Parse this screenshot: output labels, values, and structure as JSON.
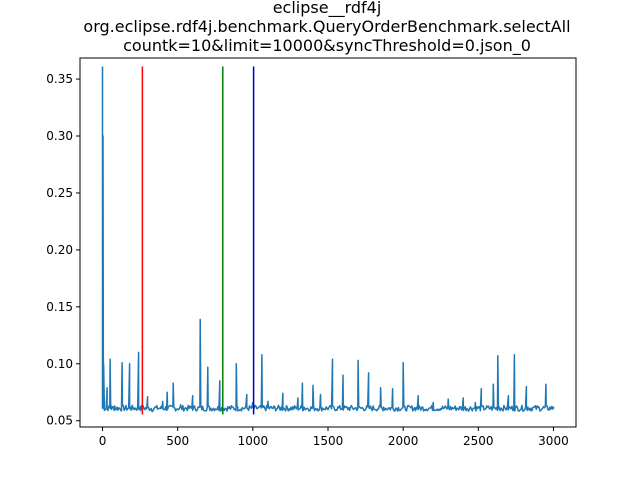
{
  "chart_data": {
    "type": "line",
    "title_lines": [
      "eclipse__rdf4j",
      "org.eclipse.rdf4j.benchmark.QueryOrderBenchmark.selectAll",
      "countk=10&limit=10000&syncThreshold=0.json_0"
    ],
    "xlabel": "",
    "ylabel": "",
    "xlim": [
      -150,
      3150
    ],
    "ylim": [
      0.0445,
      0.3685
    ],
    "x_ticks": [
      0,
      500,
      1000,
      1500,
      2000,
      2500,
      3000
    ],
    "y_ticks": [
      0.05,
      0.1,
      0.15,
      0.2,
      0.25,
      0.3,
      0.35
    ],
    "y_tick_labels": [
      "0.05",
      "0.10",
      "0.15",
      "0.20",
      "0.25",
      "0.30",
      "0.35"
    ],
    "grid": false,
    "legend": "none",
    "series": [
      {
        "color": "#1f77b4",
        "baseline": 0.061,
        "x_end": 3000,
        "points": [
          [
            0,
            0.361
          ],
          [
            3,
            0.3
          ],
          [
            7,
            0.1
          ],
          [
            12,
            0.066
          ],
          [
            30,
            0.079
          ],
          [
            45,
            0.062
          ],
          [
            50,
            0.104
          ],
          [
            55,
            0.064
          ],
          [
            80,
            0.063
          ],
          [
            100,
            0.061
          ],
          [
            130,
            0.101
          ],
          [
            140,
            0.062
          ],
          [
            180,
            0.1
          ],
          [
            190,
            0.062
          ],
          [
            240,
            0.11
          ],
          [
            250,
            0.062
          ],
          [
            300,
            0.071
          ],
          [
            330,
            0.058
          ],
          [
            400,
            0.067
          ],
          [
            430,
            0.075
          ],
          [
            470,
            0.083
          ],
          [
            520,
            0.064
          ],
          [
            600,
            0.072
          ],
          [
            650,
            0.139
          ],
          [
            660,
            0.062
          ],
          [
            700,
            0.097
          ],
          [
            710,
            0.062
          ],
          [
            780,
            0.085
          ],
          [
            800,
            0.061
          ],
          [
            890,
            0.1
          ],
          [
            900,
            0.062
          ],
          [
            960,
            0.073
          ],
          [
            1000,
            0.066
          ],
          [
            1060,
            0.108
          ],
          [
            1070,
            0.063
          ],
          [
            1100,
            0.067
          ],
          [
            1200,
            0.074
          ],
          [
            1300,
            0.07
          ],
          [
            1330,
            0.083
          ],
          [
            1340,
            0.062
          ],
          [
            1400,
            0.081
          ],
          [
            1450,
            0.073
          ],
          [
            1530,
            0.104
          ],
          [
            1540,
            0.062
          ],
          [
            1600,
            0.09
          ],
          [
            1620,
            0.062
          ],
          [
            1700,
            0.103
          ],
          [
            1710,
            0.062
          ],
          [
            1770,
            0.092
          ],
          [
            1780,
            0.062
          ],
          [
            1850,
            0.079
          ],
          [
            1870,
            0.062
          ],
          [
            1930,
            0.078
          ],
          [
            2000,
            0.101
          ],
          [
            2010,
            0.062
          ],
          [
            2100,
            0.072
          ],
          [
            2200,
            0.066
          ],
          [
            2300,
            0.069
          ],
          [
            2400,
            0.07
          ],
          [
            2480,
            0.066
          ],
          [
            2520,
            0.078
          ],
          [
            2600,
            0.082
          ],
          [
            2630,
            0.107
          ],
          [
            2640,
            0.062
          ],
          [
            2700,
            0.072
          ],
          [
            2740,
            0.108
          ],
          [
            2750,
            0.062
          ],
          [
            2820,
            0.08
          ],
          [
            2830,
            0.062
          ],
          [
            2950,
            0.082
          ],
          [
            2960,
            0.062
          ],
          [
            3000,
            0.062
          ]
        ]
      }
    ],
    "vertical_lines": [
      {
        "x": 265,
        "color": "#ff0000",
        "y0": 0.0555,
        "y1": 0.361
      },
      {
        "x": 800,
        "color": "#008000",
        "y0": 0.0555,
        "y1": 0.361
      },
      {
        "x": 1005,
        "color": "#0000cc",
        "y0": 0.0555,
        "y1": 0.361
      }
    ]
  }
}
